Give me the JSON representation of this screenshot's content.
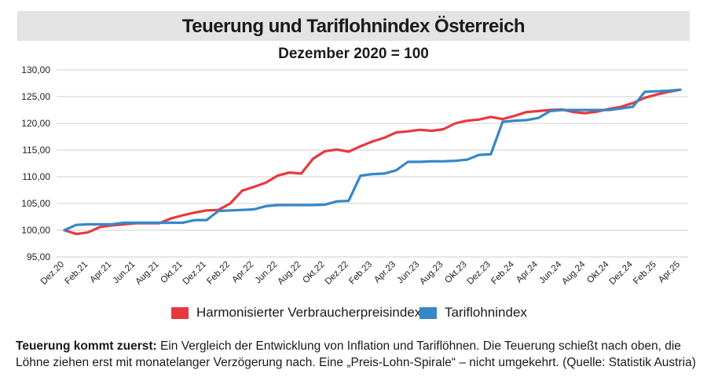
{
  "chart_data": {
    "type": "line",
    "title": "Teuerung und Tariflohnindex Österreich",
    "subtitle": "Dezember 2020 = 100",
    "xlabel": "",
    "ylabel": "",
    "ylim": [
      95,
      130
    ],
    "yticks": [
      "95,00",
      "100,00",
      "105,00",
      "110,00",
      "115,00",
      "120,00",
      "125,00",
      "130,00"
    ],
    "ytick_values": [
      95,
      100,
      105,
      110,
      115,
      120,
      125,
      130
    ],
    "grid": "horizontal",
    "legend_position": "bottom",
    "x": [
      "Dez.20",
      "Jan.21",
      "Feb.21",
      "Mär.21",
      "Apr.21",
      "Mai.21",
      "Jun.21",
      "Jul.21",
      "Aug.21",
      "Sep.21",
      "Okt.21",
      "Nov.21",
      "Dez.21",
      "Jan.22",
      "Feb.22",
      "Mär.22",
      "Apr.22",
      "Mai.22",
      "Jun.22",
      "Jul.22",
      "Aug.22",
      "Sep.22",
      "Okt.22",
      "Nov.22",
      "Dez.22",
      "Jan.23",
      "Feb.23",
      "Mär.23",
      "Apr.23",
      "Mai.23",
      "Jun.23",
      "Jul.23",
      "Aug.23",
      "Sep.23",
      "Okt.23",
      "Nov.23",
      "Dez.23",
      "Jan.24",
      "Feb.24",
      "Mär.24",
      "Apr.24",
      "Mai.24",
      "Jun.24",
      "Jul.24",
      "Aug.24",
      "Sep.24",
      "Okt.24",
      "Nov.24",
      "Dez.24",
      "Jan.25",
      "Feb.25",
      "Mär.25",
      "Apr.25"
    ],
    "x_tick_labels": [
      "Dez.20",
      "Feb.21",
      "Apr.21",
      "Jun.21",
      "Aug.21",
      "Okt.21",
      "Dez.21",
      "Feb.22",
      "Apr.22",
      "Jun.22",
      "Aug.22",
      "Okt.22",
      "Dez.22",
      "Feb.23",
      "Apr.23",
      "Jun.23",
      "Aug.23",
      "Okt.23",
      "Dez.23",
      "Feb.24",
      "Apr.24",
      "Jun.24",
      "Aug.24",
      "Okt.24",
      "Dez.24",
      "Feb.25",
      "Apr.25"
    ],
    "series": [
      {
        "name": "Harmonisierter Verbraucherpreisindex",
        "color": "#e8383d",
        "values": [
          100.0,
          99.3,
          99.6,
          100.6,
          100.9,
          101.1,
          101.3,
          101.3,
          101.3,
          102.2,
          102.8,
          103.3,
          103.7,
          103.8,
          105.0,
          107.4,
          108.1,
          108.9,
          110.2,
          110.8,
          110.6,
          113.4,
          114.8,
          115.1,
          114.7,
          115.7,
          116.6,
          117.3,
          118.3,
          118.5,
          118.8,
          118.6,
          118.9,
          120.0,
          120.5,
          120.7,
          121.2,
          120.8,
          121.4,
          122.1,
          122.3,
          122.5,
          122.6,
          122.1,
          121.9,
          122.2,
          122.7,
          123.1,
          123.8,
          124.8,
          125.4,
          125.9,
          126.3
        ]
      },
      {
        "name": "Tariflohnindex",
        "color": "#3587c7",
        "values": [
          100.0,
          101.0,
          101.1,
          101.1,
          101.1,
          101.4,
          101.4,
          101.4,
          101.4,
          101.4,
          101.4,
          101.9,
          101.9,
          103.6,
          103.7,
          103.8,
          103.9,
          104.5,
          104.7,
          104.7,
          104.7,
          104.7,
          104.8,
          105.4,
          105.5,
          110.2,
          110.5,
          110.6,
          111.2,
          112.8,
          112.8,
          112.9,
          112.9,
          113.0,
          113.2,
          114.1,
          114.2,
          120.3,
          120.5,
          120.6,
          121.0,
          122.3,
          122.5,
          122.5,
          122.5,
          122.5,
          122.5,
          122.8,
          123.1,
          125.9,
          126.0,
          126.1,
          126.3
        ]
      }
    ]
  },
  "caption": {
    "lead": "Teuerung kommt zuerst:",
    "text": " Ein Vergleich der Entwicklung von Inflation und Tariflöhnen. Die Teuerung schießt nach oben, die Löhne ziehen erst mit monatelanger Verzögerung nach. Eine „Preis-Lohn-Spirale“ – nicht umgekehrt. (Quelle: Statistik Austria)"
  }
}
